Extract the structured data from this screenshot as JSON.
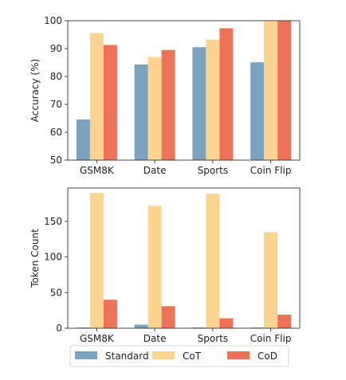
{
  "colors": {
    "Standard": "#7ba3bf",
    "CoT": "#fbd491",
    "CoD": "#ec7357"
  },
  "legend": {
    "items": [
      "Standard",
      "CoT",
      "CoD"
    ]
  },
  "chart_data": [
    {
      "type": "bar",
      "title": "",
      "xlabel": "",
      "ylabel": "Accuracy (%)",
      "ylim": [
        50,
        100
      ],
      "yticks": [
        50,
        60,
        70,
        80,
        90,
        100
      ],
      "grid": false,
      "categories": [
        "GSM8K",
        "Date",
        "Sports",
        "Coin Flip"
      ],
      "series": [
        {
          "name": "Standard",
          "values": [
            64.6,
            84.3,
            90.5,
            85.1
          ]
        },
        {
          "name": "CoT",
          "values": [
            95.6,
            87.0,
            93.2,
            100.0
          ]
        },
        {
          "name": "CoD",
          "values": [
            91.3,
            89.5,
            97.3,
            100.0
          ]
        }
      ]
    },
    {
      "type": "bar",
      "title": "",
      "xlabel": "",
      "ylabel": "Token Count",
      "ylim": [
        0,
        197
      ],
      "yticks": [
        0,
        50,
        100,
        150
      ],
      "grid": false,
      "categories": [
        "GSM8K",
        "Date",
        "Sports",
        "Coin Flip"
      ],
      "series": [
        {
          "name": "Standard",
          "values": [
            1,
            5,
            1,
            1
          ]
        },
        {
          "name": "CoT",
          "values": [
            190,
            172,
            189,
            135
          ]
        },
        {
          "name": "CoD",
          "values": [
            40,
            31,
            14,
            19
          ]
        }
      ],
      "legend_position": "bottom-center"
    }
  ]
}
